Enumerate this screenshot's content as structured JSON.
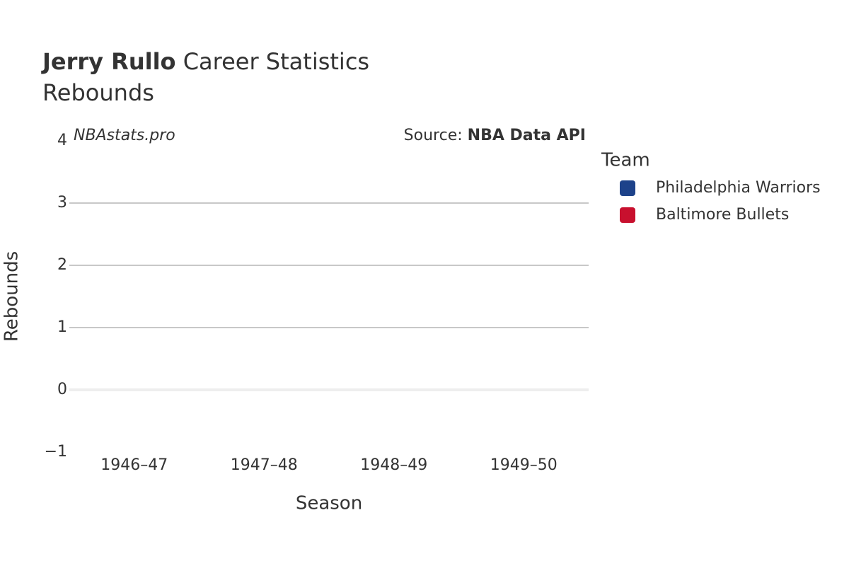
{
  "chart_data": {
    "type": "line",
    "title": "Jerry Rullo",
    "title_rest": "Career Statistics",
    "subtitle": "Rebounds",
    "watermark": "NBAstats.pro",
    "source_prefix": "Source:",
    "source": "NBA Data API",
    "x_label": "Season",
    "y_label": "Rebounds",
    "legend_title": "Team",
    "categories": [
      "1946–47",
      "1947–48",
      "1948–49",
      "1949–50"
    ],
    "series": [
      {
        "name": "Philadelphia Warriors",
        "color": "#1d428a",
        "values": [
          null,
          null,
          null,
          null
        ]
      },
      {
        "name": "Baltimore Bullets",
        "color": "#c8102e",
        "values": [
          null,
          null,
          null,
          null
        ]
      }
    ],
    "ylim": [
      -1,
      4
    ],
    "yticks": [
      {
        "value": -1,
        "label": "−1"
      },
      0,
      1,
      2,
      3,
      4
    ],
    "grid": true
  }
}
